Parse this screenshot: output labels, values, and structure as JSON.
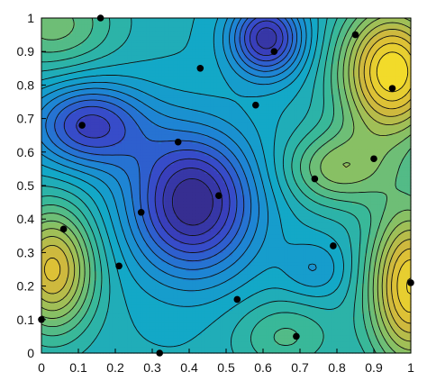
{
  "chart_data": {
    "type": "contour",
    "title": "",
    "xlabel": "",
    "ylabel": "",
    "xlim": [
      0,
      1
    ],
    "ylim": [
      0,
      1
    ],
    "x_ticks": [
      "0",
      "0.1",
      "0.2",
      "0.3",
      "0.4",
      "0.5",
      "0.6",
      "0.7",
      "0.8",
      "0.9",
      "1"
    ],
    "y_ticks": [
      "0",
      "0.1",
      "0.2",
      "0.3",
      "0.4",
      "0.5",
      "0.6",
      "0.7",
      "0.8",
      "0.9",
      "1"
    ],
    "grid": false,
    "colormap": "parula",
    "colormap_stops": [
      "#352a87",
      "#3a45c8",
      "#1f82d5",
      "#12a8c8",
      "#3ab898",
      "#8ec160",
      "#d6b83a",
      "#f7e227"
    ],
    "contour_line_color": "#111111",
    "contour_levels": 22,
    "points": [
      {
        "x": 0.16,
        "y": 1.0
      },
      {
        "x": 0.43,
        "y": 0.85
      },
      {
        "x": 0.63,
        "y": 0.9
      },
      {
        "x": 0.85,
        "y": 0.95
      },
      {
        "x": 0.95,
        "y": 0.79
      },
      {
        "x": 0.11,
        "y": 0.68
      },
      {
        "x": 0.37,
        "y": 0.63
      },
      {
        "x": 0.58,
        "y": 0.74
      },
      {
        "x": 0.9,
        "y": 0.58
      },
      {
        "x": 0.74,
        "y": 0.52
      },
      {
        "x": 0.48,
        "y": 0.47
      },
      {
        "x": 0.27,
        "y": 0.42
      },
      {
        "x": 0.06,
        "y": 0.37
      },
      {
        "x": 0.79,
        "y": 0.32
      },
      {
        "x": 0.21,
        "y": 0.26
      },
      {
        "x": 0.53,
        "y": 0.16
      },
      {
        "x": 0.0,
        "y": 0.1
      },
      {
        "x": 0.69,
        "y": 0.05
      },
      {
        "x": 0.32,
        "y": 0.0
      },
      {
        "x": 1.0,
        "y": 0.21
      }
    ],
    "surface_features": [
      {
        "kind": "min",
        "x": 0.41,
        "y": 0.45,
        "amp": 1.15,
        "sx": 0.12,
        "sy": 0.15
      },
      {
        "kind": "min",
        "x": 0.13,
        "y": 0.68,
        "amp": 0.85,
        "sx": 0.11,
        "sy": 0.09
      },
      {
        "kind": "min",
        "x": 0.61,
        "y": 0.94,
        "amp": 1.0,
        "sx": 0.07,
        "sy": 0.08
      },
      {
        "kind": "min",
        "x": 0.74,
        "y": 0.25,
        "amp": 0.25,
        "sx": 0.06,
        "sy": 0.06
      },
      {
        "kind": "max",
        "x": 0.95,
        "y": 0.84,
        "amp": 1.35,
        "sx": 0.1,
        "sy": 0.14
      },
      {
        "kind": "max",
        "x": 0.03,
        "y": 0.25,
        "amp": 1.05,
        "sx": 0.08,
        "sy": 0.13
      },
      {
        "kind": "max",
        "x": 1.0,
        "y": 0.2,
        "amp": 1.25,
        "sx": 0.08,
        "sy": 0.17
      },
      {
        "kind": "max",
        "x": 0.8,
        "y": 0.55,
        "amp": 0.6,
        "sx": 0.1,
        "sy": 0.08
      },
      {
        "kind": "max",
        "x": 0.03,
        "y": 0.98,
        "amp": 0.5,
        "sx": 0.12,
        "sy": 0.1
      },
      {
        "kind": "max",
        "x": 0.66,
        "y": 0.05,
        "amp": 0.35,
        "sx": 0.1,
        "sy": 0.08
      }
    ]
  }
}
